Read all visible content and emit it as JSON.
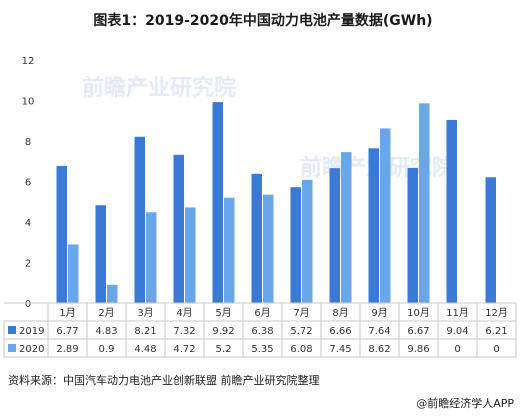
{
  "chart_data": {
    "type": "bar",
    "title": "图表1：2019-2020年中国动力电池产量数据(GWh)",
    "categories": [
      "1月",
      "2月",
      "3月",
      "4月",
      "5月",
      "6月",
      "7月",
      "8月",
      "9月",
      "10月",
      "11月",
      "12月"
    ],
    "series": [
      {
        "name": "2019",
        "color": "#3a7ad6",
        "values": [
          6.77,
          4.83,
          8.21,
          7.32,
          9.92,
          6.38,
          5.72,
          6.66,
          7.64,
          6.67,
          9.04,
          6.21
        ]
      },
      {
        "name": "2020",
        "color": "#6aa7ea",
        "values": [
          2.89,
          0.9,
          4.48,
          4.72,
          5.2,
          5.35,
          6.08,
          7.45,
          8.62,
          9.86,
          0,
          0
        ]
      }
    ],
    "ylim": [
      0,
      12
    ],
    "yticks": [
      0,
      2,
      4,
      6,
      8,
      10,
      12
    ],
    "grid": false,
    "legend": "data-table"
  },
  "watermark": {
    "brand": "前瞻产业研究院"
  },
  "footer": {
    "source": "资料来源：中国汽车动力电池产业创新联盟 前瞻产业研究院整理",
    "credit": "@前瞻经济学人APP"
  }
}
